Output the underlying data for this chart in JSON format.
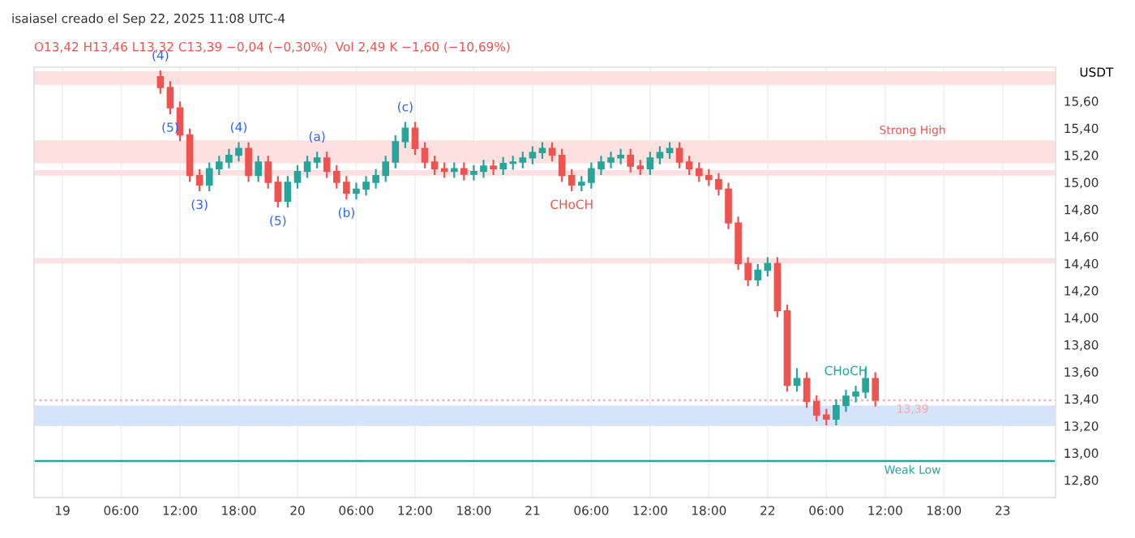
{
  "chart_data": {
    "type": "candlestick",
    "title": "isaiasel creado el Sep 22, 2025 11:08 UTC-4",
    "ylabel": "USDT",
    "x": [
      "2025-09-19T10:00",
      "2025-09-19T11:00",
      "2025-09-19T12:00",
      "2025-09-19T13:00",
      "2025-09-19T14:00",
      "2025-09-19T15:00",
      "2025-09-19T16:00",
      "2025-09-19T17:00",
      "2025-09-19T18:00",
      "2025-09-19T19:00",
      "2025-09-19T20:00",
      "2025-09-19T21:00",
      "2025-09-19T22:00",
      "2025-09-19T23:00",
      "2025-09-20T00:00",
      "2025-09-20T01:00",
      "2025-09-20T02:00",
      "2025-09-20T03:00",
      "2025-09-20T04:00",
      "2025-09-20T05:00",
      "2025-09-20T06:00",
      "2025-09-20T07:00",
      "2025-09-20T08:00",
      "2025-09-20T09:00",
      "2025-09-20T10:00",
      "2025-09-20T11:00",
      "2025-09-20T12:00",
      "2025-09-20T13:00",
      "2025-09-20T14:00",
      "2025-09-20T15:00",
      "2025-09-20T16:00",
      "2025-09-20T17:00",
      "2025-09-20T18:00",
      "2025-09-20T19:00",
      "2025-09-20T20:00",
      "2025-09-20T21:00",
      "2025-09-20T22:00",
      "2025-09-20T23:00",
      "2025-09-21T00:00",
      "2025-09-21T01:00",
      "2025-09-21T02:00",
      "2025-09-21T03:00",
      "2025-09-21T04:00",
      "2025-09-21T05:00",
      "2025-09-21T06:00",
      "2025-09-21T07:00",
      "2025-09-21T08:00",
      "2025-09-21T09:00",
      "2025-09-21T10:00",
      "2025-09-21T11:00",
      "2025-09-21T12:00",
      "2025-09-21T13:00",
      "2025-09-21T14:00",
      "2025-09-21T15:00",
      "2025-09-21T16:00",
      "2025-09-21T17:00",
      "2025-09-21T18:00",
      "2025-09-21T19:00",
      "2025-09-21T20:00",
      "2025-09-21T21:00",
      "2025-09-21T22:00",
      "2025-09-21T23:00",
      "2025-09-22T00:00",
      "2025-09-22T01:00",
      "2025-09-22T02:00",
      "2025-09-22T03:00",
      "2025-09-22T04:00",
      "2025-09-22T05:00",
      "2025-09-22T06:00",
      "2025-09-22T07:00",
      "2025-09-22T08:00",
      "2025-09-22T09:00",
      "2025-09-22T10:00",
      "2025-09-22T11:00"
    ],
    "ohlc": [
      [
        15.78,
        15.82,
        15.66,
        15.7
      ],
      [
        15.7,
        15.74,
        15.51,
        15.55
      ],
      [
        15.55,
        15.59,
        15.31,
        15.35
      ],
      [
        15.35,
        15.39,
        15.01,
        15.05
      ],
      [
        15.05,
        15.09,
        14.94,
        14.98
      ],
      [
        14.98,
        15.14,
        14.94,
        15.1
      ],
      [
        15.1,
        15.19,
        15.06,
        15.15
      ],
      [
        15.15,
        15.24,
        15.11,
        15.2
      ],
      [
        15.2,
        15.29,
        15.16,
        15.25
      ],
      [
        15.25,
        15.29,
        15.01,
        15.05
      ],
      [
        15.05,
        15.19,
        15.01,
        15.15
      ],
      [
        15.15,
        15.19,
        14.96,
        15.0
      ],
      [
        15.0,
        15.04,
        14.82,
        14.86
      ],
      [
        14.86,
        15.04,
        14.82,
        15.0
      ],
      [
        15.0,
        15.12,
        14.96,
        15.08
      ],
      [
        15.08,
        15.19,
        15.04,
        15.15
      ],
      [
        15.15,
        15.22,
        15.11,
        15.18
      ],
      [
        15.18,
        15.22,
        15.04,
        15.08
      ],
      [
        15.08,
        15.12,
        14.96,
        15.0
      ],
      [
        15.0,
        15.04,
        14.88,
        14.92
      ],
      [
        14.92,
        14.99,
        14.88,
        14.95
      ],
      [
        14.95,
        15.04,
        14.91,
        15.0
      ],
      [
        15.0,
        15.09,
        14.96,
        15.05
      ],
      [
        15.05,
        15.19,
        15.01,
        15.15
      ],
      [
        15.15,
        15.34,
        15.11,
        15.3
      ],
      [
        15.3,
        15.44,
        15.26,
        15.4
      ],
      [
        15.4,
        15.44,
        15.21,
        15.25
      ],
      [
        15.25,
        15.29,
        15.11,
        15.15
      ],
      [
        15.15,
        15.19,
        15.06,
        15.1
      ],
      [
        15.1,
        15.14,
        15.04,
        15.08
      ],
      [
        15.08,
        15.14,
        15.04,
        15.1
      ],
      [
        15.1,
        15.14,
        15.02,
        15.06
      ],
      [
        15.06,
        15.12,
        15.02,
        15.08
      ],
      [
        15.08,
        15.16,
        15.04,
        15.12
      ],
      [
        15.12,
        15.16,
        15.06,
        15.1
      ],
      [
        15.1,
        15.18,
        15.06,
        15.14
      ],
      [
        15.14,
        15.19,
        15.1,
        15.15
      ],
      [
        15.15,
        15.22,
        15.11,
        15.18
      ],
      [
        15.18,
        15.26,
        15.14,
        15.22
      ],
      [
        15.22,
        15.29,
        15.18,
        15.25
      ],
      [
        15.25,
        15.29,
        15.16,
        15.2
      ],
      [
        15.2,
        15.24,
        15.01,
        15.05
      ],
      [
        15.05,
        15.09,
        14.94,
        14.98
      ],
      [
        14.98,
        15.04,
        14.94,
        15.0
      ],
      [
        15.0,
        15.14,
        14.96,
        15.1
      ],
      [
        15.1,
        15.19,
        15.06,
        15.15
      ],
      [
        15.15,
        15.22,
        15.11,
        15.18
      ],
      [
        15.18,
        15.24,
        15.14,
        15.2
      ],
      [
        15.2,
        15.24,
        15.08,
        15.12
      ],
      [
        15.12,
        15.16,
        15.06,
        15.1
      ],
      [
        15.1,
        15.22,
        15.06,
        15.18
      ],
      [
        15.18,
        15.26,
        15.14,
        15.22
      ],
      [
        15.22,
        15.29,
        15.18,
        15.25
      ],
      [
        15.25,
        15.29,
        15.11,
        15.15
      ],
      [
        15.15,
        15.19,
        15.06,
        15.1
      ],
      [
        15.1,
        15.14,
        15.01,
        15.05
      ],
      [
        15.05,
        15.09,
        14.98,
        15.02
      ],
      [
        15.02,
        15.06,
        14.91,
        14.95
      ],
      [
        14.95,
        14.99,
        14.66,
        14.7
      ],
      [
        14.7,
        14.74,
        14.36,
        14.4
      ],
      [
        14.4,
        14.44,
        14.24,
        14.28
      ],
      [
        14.28,
        14.39,
        14.24,
        14.35
      ],
      [
        14.35,
        14.44,
        14.31,
        14.4
      ],
      [
        14.4,
        14.44,
        14.01,
        14.05
      ],
      [
        14.05,
        14.09,
        13.46,
        13.5
      ],
      [
        13.5,
        13.62,
        13.46,
        13.55
      ],
      [
        13.55,
        13.59,
        13.34,
        13.38
      ],
      [
        13.38,
        13.42,
        13.24,
        13.28
      ],
      [
        13.28,
        13.32,
        13.21,
        13.25
      ],
      [
        13.25,
        13.39,
        13.21,
        13.35
      ],
      [
        13.35,
        13.46,
        13.31,
        13.42
      ],
      [
        13.42,
        13.49,
        13.38,
        13.45
      ],
      [
        13.45,
        13.62,
        13.41,
        13.55
      ],
      [
        13.55,
        13.59,
        13.35,
        13.39
      ]
    ],
    "xlim": [
      "2025-09-18T21:06",
      "2025-09-23T05:24"
    ],
    "xticks": [
      {
        "value": "2025-09-19",
        "label": "19"
      },
      {
        "value": "2025-09-19T06:00",
        "label": "06:00"
      },
      {
        "value": "2025-09-19T12:00",
        "label": "12:00"
      },
      {
        "value": "2025-09-19T18:00",
        "label": "18:00"
      },
      {
        "value": "2025-09-20",
        "label": "20"
      },
      {
        "value": "2025-09-20T06:00",
        "label": "06:00"
      },
      {
        "value": "2025-09-20T12:00",
        "label": "12:00"
      },
      {
        "value": "2025-09-20T18:00",
        "label": "18:00"
      },
      {
        "value": "2025-09-21",
        "label": "21"
      },
      {
        "value": "2025-09-21T06:00",
        "label": "06:00"
      },
      {
        "value": "2025-09-21T12:00",
        "label": "12:00"
      },
      {
        "value": "2025-09-21T18:00",
        "label": "18:00"
      },
      {
        "value": "2025-09-22",
        "label": "22"
      },
      {
        "value": "2025-09-22T06:00",
        "label": "06:00"
      },
      {
        "value": "2025-09-22T12:00",
        "label": "12:00"
      },
      {
        "value": "2025-09-22T18:00",
        "label": "18:00"
      },
      {
        "value": "2025-09-23",
        "label": "23"
      }
    ],
    "ylim": [
      12.67,
      15.85
    ],
    "yticks": [
      {
        "value": 12.8,
        "label": "12,80"
      },
      {
        "value": 13.0,
        "label": "13,00"
      },
      {
        "value": 13.2,
        "label": "13,20"
      },
      {
        "value": 13.4,
        "label": "13,40"
      },
      {
        "value": 13.6,
        "label": "13,60"
      },
      {
        "value": 13.8,
        "label": "13,80"
      },
      {
        "value": 14.0,
        "label": "14,00"
      },
      {
        "value": 14.2,
        "label": "14,20"
      },
      {
        "value": 14.4,
        "label": "14,40"
      },
      {
        "value": 14.6,
        "label": "14,60"
      },
      {
        "value": 14.8,
        "label": "14,80"
      },
      {
        "value": 15.0,
        "label": "15,00"
      },
      {
        "value": 15.2,
        "label": "15,20"
      },
      {
        "value": 15.4,
        "label": "15,40"
      },
      {
        "value": 15.6,
        "label": "15,60"
      }
    ],
    "grid": "x",
    "bands": [
      {
        "axis": "y",
        "from": 15.72,
        "to": 15.82,
        "color": "#fde0e0"
      },
      {
        "axis": "y",
        "from": 15.14,
        "to": 15.31,
        "color": "#fde0e0",
        "label": "Strong High"
      },
      {
        "axis": "y",
        "from": 15.05,
        "to": 15.09,
        "color": "#fde0e0"
      },
      {
        "axis": "y",
        "from": 14.4,
        "to": 14.44,
        "color": "#fde0e0"
      },
      {
        "axis": "y",
        "from": 13.2,
        "to": 13.35,
        "color": "#d6e4fb"
      }
    ],
    "ref_lines": [
      {
        "axis": "y",
        "value": 13.39,
        "label": "13,39",
        "color": "#f7a8a8",
        "line_style": "dotted"
      },
      {
        "axis": "y",
        "value": 12.94,
        "label": "Weak Low",
        "color": "#26a69a",
        "line_style": "solid"
      }
    ],
    "annotations": [
      "O13,42 H13,46 L13,32 C13,39 −0,04 (−0,30%)  Vol 2,49 K −1,60 (−10,69%)",
      {
        "text": "(4)",
        "x": "2025-09-19T10:00",
        "y": 15.82
      },
      {
        "text": "(5)",
        "x": "2025-09-19T11:00",
        "y": 15.51
      },
      {
        "text": "(3)",
        "x": "2025-09-19T14:00",
        "y": 14.94
      },
      {
        "text": "(4)",
        "x": "2025-09-19T18:00",
        "y": 15.29
      },
      {
        "text": "(5)",
        "x": "2025-09-19T22:00",
        "y": 14.82
      },
      {
        "text": "(a)",
        "x": "2025-09-20T02:00",
        "y": 15.22
      },
      {
        "text": "(b)",
        "x": "2025-09-20T05:00",
        "y": 14.88
      },
      {
        "text": "(c)",
        "x": "2025-09-20T11:00",
        "y": 15.44
      },
      {
        "text": "CHoCH",
        "x": "2025-09-21T04:00",
        "y": 14.94
      },
      {
        "text": "CHoCH",
        "x": "2025-09-22T08:00",
        "y": 13.49
      }
    ]
  }
}
